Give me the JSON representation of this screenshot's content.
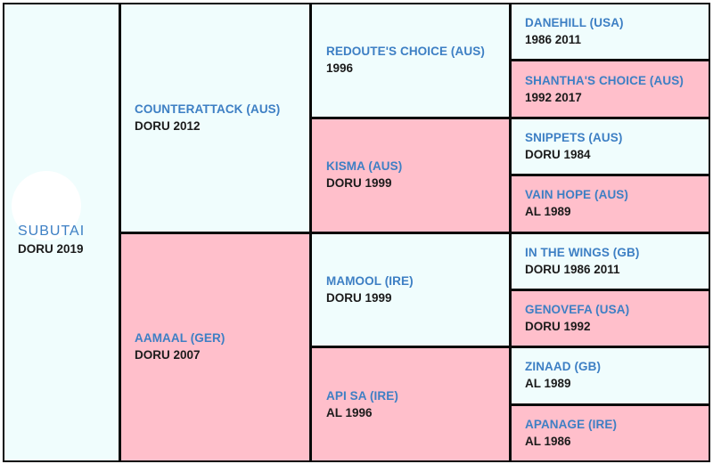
{
  "pedigree": {
    "subject": {
      "name": "SUBUTAI",
      "info": "DORU 2019"
    },
    "sire": {
      "name": "COUNTERATTACK (AUS)",
      "info": "DORU 2012"
    },
    "dam": {
      "name": "AAMAAL (GER)",
      "info": "DORU 2007"
    },
    "grandparents": [
      {
        "name": "REDOUTE'S CHOICE (AUS)",
        "info": "1996"
      },
      {
        "name": "KISMA (AUS)",
        "info": "DORU 1999"
      },
      {
        "name": "MAMOOL (IRE)",
        "info": "DORU 1999"
      },
      {
        "name": "API SA (IRE)",
        "info": "AL 1996"
      }
    ],
    "great_grandparents": [
      {
        "name": "DANEHILL (USA)",
        "info": "1986 2011"
      },
      {
        "name": "SHANTHA'S CHOICE (AUS)",
        "info": "1992 2017"
      },
      {
        "name": "SNIPPETS (AUS)",
        "info": "DORU 1984"
      },
      {
        "name": "VAIN HOPE (AUS)",
        "info": "AL 1989"
      },
      {
        "name": "IN THE WINGS (GB)",
        "info": "DORU 1986 2011"
      },
      {
        "name": "GENOVEFA (USA)",
        "info": "DORU 1992"
      },
      {
        "name": "ZINAAD (GB)",
        "info": "AL 1989"
      },
      {
        "name": "APANAGE (IRE)",
        "info": "AL 1986"
      }
    ]
  },
  "colors": {
    "male_bg": "#f0fdfd",
    "female_bg": "#ffbfcb",
    "name_text": "#3d7fc4",
    "info_text": "#1b1b1b",
    "border": "#0a0a0a"
  }
}
